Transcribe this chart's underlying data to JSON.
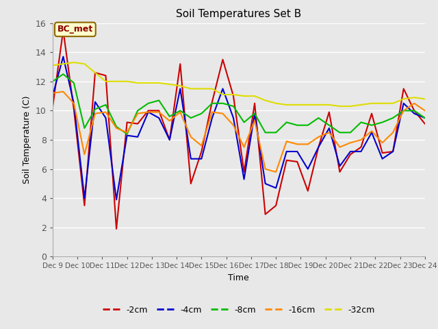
{
  "title": "Soil Temperatures Set B",
  "xlabel": "Time",
  "ylabel": "Soil Temperature (C)",
  "ylim": [
    0,
    16
  ],
  "xlim": [
    0,
    15
  ],
  "annotation": "BC_met",
  "background_color": "#e8e8e8",
  "plot_bg_color": "#e8e8e8",
  "grid_color": "#ffffff",
  "series": {
    "-2cm": {
      "color": "#cc0000",
      "data": [
        10.2,
        15.5,
        10.1,
        3.5,
        12.6,
        12.4,
        1.9,
        9.2,
        9.1,
        10.0,
        10.0,
        8.0,
        13.2,
        5.0,
        7.2,
        10.6,
        13.5,
        11.0,
        5.8,
        10.5,
        2.9,
        3.5,
        6.6,
        6.5,
        4.5,
        7.5,
        9.9,
        5.8,
        7.0,
        7.5,
        9.8,
        7.1,
        7.2,
        11.5,
        10.0,
        9.1
      ]
    },
    "-4cm": {
      "color": "#0000cc",
      "data": [
        11.0,
        13.7,
        10.5,
        4.0,
        10.6,
        9.5,
        3.9,
        8.3,
        8.2,
        9.9,
        9.5,
        8.0,
        11.5,
        6.7,
        6.7,
        9.5,
        11.5,
        9.5,
        5.3,
        9.8,
        5.0,
        4.7,
        7.2,
        7.2,
        6.0,
        7.5,
        8.8,
        6.2,
        7.2,
        7.2,
        8.5,
        6.7,
        7.2,
        10.5,
        9.8,
        9.5
      ]
    },
    "-8cm": {
      "color": "#00bb00",
      "data": [
        12.0,
        12.5,
        11.9,
        8.8,
        10.1,
        10.4,
        8.9,
        8.4,
        10.0,
        10.5,
        10.7,
        9.6,
        10.0,
        9.5,
        9.8,
        10.5,
        10.5,
        10.3,
        9.2,
        9.8,
        8.5,
        8.5,
        9.2,
        9.0,
        9.0,
        9.5,
        9.0,
        8.5,
        8.5,
        9.2,
        9.0,
        9.2,
        9.5,
        10.0,
        10.0,
        9.5
      ]
    },
    "-16cm": {
      "color": "#ff8800",
      "data": [
        11.2,
        11.3,
        10.5,
        7.0,
        9.8,
        9.9,
        8.8,
        8.5,
        9.8,
        9.9,
        9.9,
        9.3,
        9.9,
        8.2,
        7.6,
        9.9,
        9.8,
        9.0,
        7.5,
        9.3,
        6.0,
        5.8,
        7.9,
        7.7,
        7.7,
        8.2,
        8.5,
        7.5,
        7.8,
        8.0,
        8.6,
        7.8,
        8.5,
        10.0,
        10.5,
        10.0
      ]
    },
    "-32cm": {
      "color": "#dddd00",
      "data": [
        13.1,
        13.2,
        13.3,
        13.2,
        12.6,
        12.0,
        12.0,
        12.0,
        11.9,
        11.9,
        11.9,
        11.8,
        11.7,
        11.5,
        11.5,
        11.5,
        11.1,
        11.1,
        11.0,
        11.0,
        10.7,
        10.5,
        10.4,
        10.4,
        10.4,
        10.4,
        10.4,
        10.3,
        10.3,
        10.4,
        10.5,
        10.5,
        10.5,
        10.8,
        10.9,
        10.8
      ]
    }
  },
  "xtick_labels": [
    "Dec 9",
    "Dec 10",
    "Dec 11",
    "Dec 12",
    "Dec 13",
    "Dec 14",
    "Dec 15",
    "Dec 16",
    "Dec 17",
    "Dec 18",
    "Dec 19",
    "Dec 20",
    "Dec 21",
    "Dec 22",
    "Dec 23",
    "Dec 24"
  ],
  "xtick_positions": [
    0,
    1,
    2,
    3,
    4,
    5,
    6,
    7,
    8,
    9,
    10,
    11,
    12,
    13,
    14,
    15
  ],
  "ytick_labels": [
    "0",
    "2",
    "4",
    "6",
    "8",
    "10",
    "12",
    "14",
    "16"
  ],
  "ytick_positions": [
    0,
    2,
    4,
    6,
    8,
    10,
    12,
    14,
    16
  ],
  "linewidth": 1.5,
  "legend_colors": [
    "#cc0000",
    "#0000cc",
    "#00bb00",
    "#ff8800",
    "#dddd00"
  ],
  "legend_labels": [
    "-2cm",
    "-4cm",
    "-8cm",
    "-16cm",
    "-32cm"
  ]
}
